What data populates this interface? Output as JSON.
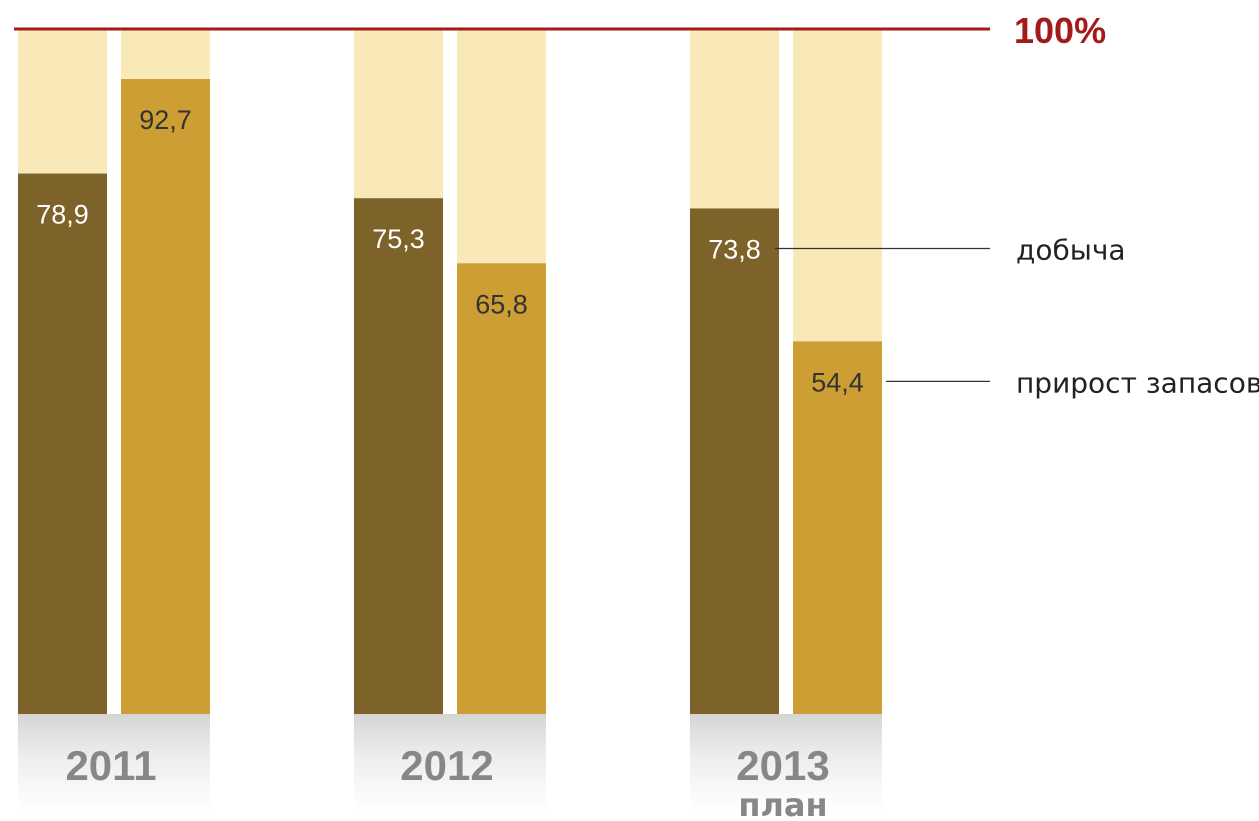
{
  "chart_data": {
    "type": "bar",
    "stacked_to": 100,
    "categories": [
      "2011",
      "2012",
      "2013"
    ],
    "category_sublabels": [
      "",
      "",
      "план"
    ],
    "series": [
      {
        "name": "добыча",
        "values": [
          78.9,
          75.3,
          73.8
        ],
        "labels": [
          "78,9",
          "75,3",
          "73,8"
        ]
      },
      {
        "name": "прирост запасов",
        "values": [
          92.7,
          65.8,
          54.4
        ],
        "labels": [
          "92,7",
          "65,8",
          "54,4"
        ]
      }
    ],
    "ylim": [
      0,
      100
    ],
    "reference_line": {
      "value": 100,
      "label": "100%"
    },
    "grid": false,
    "legend_placement": "right (leader lines)"
  },
  "colors": {
    "series": [
      "#7d6229",
      "#cc9e34"
    ],
    "remainder": "#f9e9b8",
    "reference_line": "#a31a1b",
    "value_label_dark_bar": "#ffffff",
    "value_label_light_bar": "#333333",
    "category_label": "#878787",
    "category_band": "#d9d9d9",
    "legend_text": "#222222"
  }
}
